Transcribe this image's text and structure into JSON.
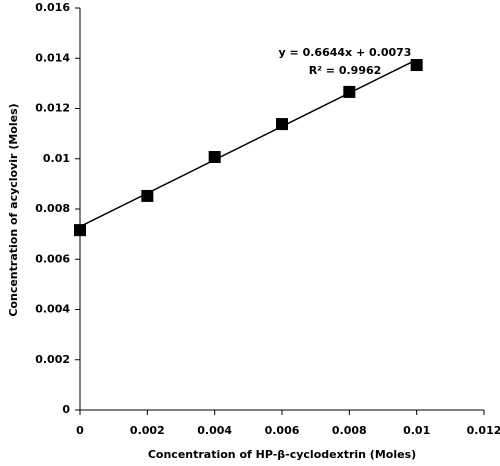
{
  "chart_data": {
    "type": "scatter",
    "x_label": "Concentration of HP-β-cyclodextrin (Moles)",
    "y_label": "Concentration of acyclovir (Moles)",
    "x": [
      0,
      0.002,
      0.004,
      0.006,
      0.008,
      0.01
    ],
    "values": [
      0.00716,
      0.00852,
      0.01007,
      0.01138,
      0.01266,
      0.01373
    ],
    "color": "#000000",
    "xlim": [
      0,
      0.012
    ],
    "xticks": [
      0,
      0.002,
      0.004,
      0.006,
      0.008,
      0.01,
      0.012
    ],
    "ylim": [
      0,
      0.016
    ],
    "yticks": [
      0,
      0.002,
      0.004,
      0.006,
      0.008,
      0.01,
      0.012,
      0.014,
      0.016
    ],
    "grid": false,
    "trendline": {
      "slope": 0.6644,
      "intercept": 0.0073,
      "equation": "y = 0.6644x + 0.0073",
      "r2_label": "R² = 0.9962"
    }
  }
}
